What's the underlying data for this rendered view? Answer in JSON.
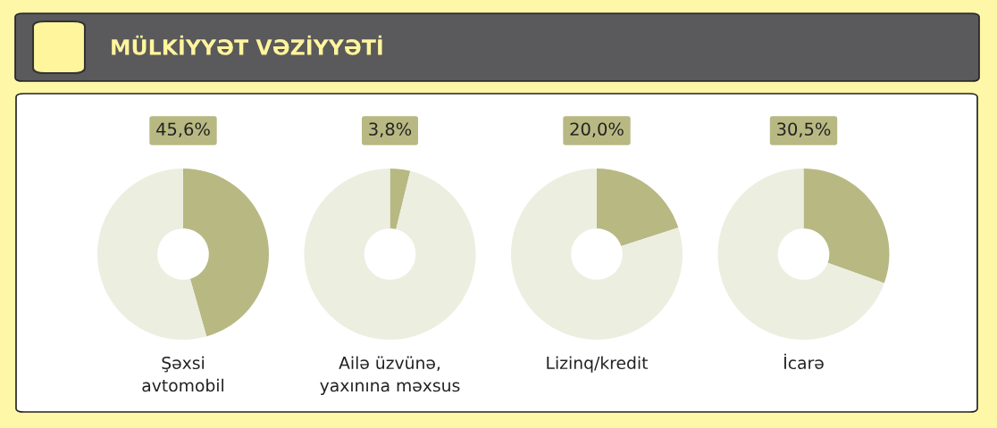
{
  "chart_data": [
    {
      "type": "other",
      "title": "MÜLKİYYƏT VƏZİYYƏTİ"
    },
    {
      "type": "donut",
      "title": "Şəxsi\navtomobil",
      "categories": [
        null,
        null
      ],
      "values": [
        45.6,
        54.4
      ],
      "colors": [
        "#b8b883",
        "#eceee0"
      ],
      "value_labels": [
        "45,6%",
        null
      ]
    },
    {
      "type": "donut",
      "title": "Ailə üzvünə,\nyaxınına məxsus",
      "categories": [
        null,
        null
      ],
      "values": [
        3.8,
        96.2
      ],
      "colors": [
        "#b8b883",
        "#eceee0"
      ],
      "value_labels": [
        "3,8%",
        null
      ]
    },
    {
      "type": "donut",
      "title": "Lizinq/kredit",
      "categories": [
        null,
        null
      ],
      "values": [
        20.0,
        80.0
      ],
      "colors": [
        "#b8b883",
        "#eceee0"
      ],
      "value_labels": [
        "20,0%",
        null
      ]
    },
    {
      "type": "donut",
      "title": "İcarə",
      "categories": [
        null,
        null
      ],
      "values": [
        30.5,
        69.5
      ],
      "colors": [
        "#b8b883",
        "#eceee0"
      ],
      "value_labels": [
        "30,5%",
        null
      ]
    }
  ]
}
